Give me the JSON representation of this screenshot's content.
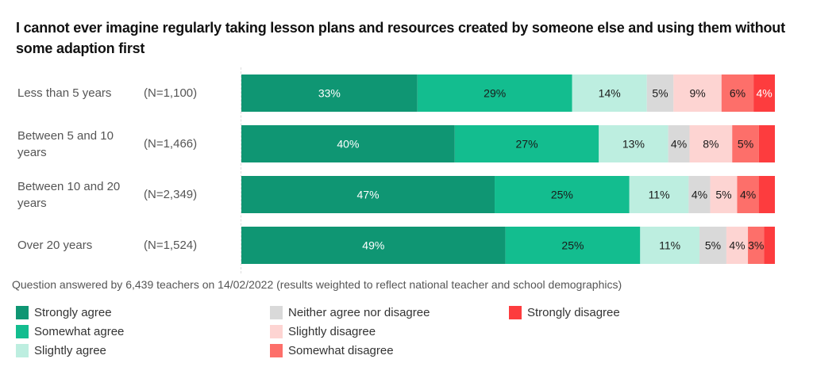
{
  "chart_data": {
    "type": "bar",
    "orientation": "horizontal",
    "stacked": true,
    "title": "I cannot ever imagine regularly taking lesson plans and resources created by someone else and using them without some adaption first",
    "categories": [
      "Less than 5 years",
      "Between 5 and 10 years",
      "Between 10 and 20 years",
      "Over 20 years"
    ],
    "category_lines": [
      [
        "Less than 5 years"
      ],
      [
        "Between 5 and 10",
        "years"
      ],
      [
        "Between 10 and 20",
        "years"
      ],
      [
        "Over 20 years"
      ]
    ],
    "sample_sizes": [
      "(N=1,100)",
      "(N=1,466)",
      "(N=2,349)",
      "(N=1,524)"
    ],
    "series": [
      {
        "name": "Strongly agree",
        "color": "#0f9673",
        "label_color": "#ffffff",
        "values": [
          33,
          40,
          47,
          49
        ],
        "labels": [
          "33%",
          "40%",
          "47%",
          "49%"
        ]
      },
      {
        "name": "Somewhat agree",
        "color": "#13bd8f",
        "label_color": "#1a1a1a",
        "values": [
          29,
          27,
          25,
          25
        ],
        "labels": [
          "29%",
          "27%",
          "25%",
          "25%"
        ]
      },
      {
        "name": "Slightly agree",
        "color": "#bdeee0",
        "label_color": "#1a1a1a",
        "values": [
          14,
          13,
          11,
          11
        ],
        "labels": [
          "14%",
          "13%",
          "11%",
          "11%"
        ]
      },
      {
        "name": "Neither agree nor disagree",
        "color": "#d9d9d9",
        "label_color": "#1a1a1a",
        "values": [
          5,
          4,
          4,
          5
        ],
        "labels": [
          "5%",
          "4%",
          "4%",
          "5%"
        ]
      },
      {
        "name": "Slightly disagree",
        "color": "#fdd4d2",
        "label_color": "#1a1a1a",
        "values": [
          9,
          8,
          5,
          4
        ],
        "labels": [
          "9%",
          "8%",
          "5%",
          "4%"
        ]
      },
      {
        "name": "Somewhat disagree",
        "color": "#fd6f6a",
        "label_color": "#1a1a1a",
        "values": [
          6,
          5,
          4,
          3
        ],
        "labels": [
          "6%",
          "5%",
          "4%",
          "3%"
        ]
      },
      {
        "name": "Strongly disagree",
        "color": "#fd3c3e",
        "label_color": "#ffffff",
        "values": [
          4,
          3,
          3,
          2
        ],
        "labels": [
          "4%",
          "",
          "",
          ""
        ]
      }
    ],
    "xlim": [
      0,
      100
    ],
    "grid": false,
    "legend_position": "bottom",
    "footnote": "Question answered by 6,439 teachers on 14/02/2022 (results weighted to reflect national teacher and school demographics)"
  }
}
